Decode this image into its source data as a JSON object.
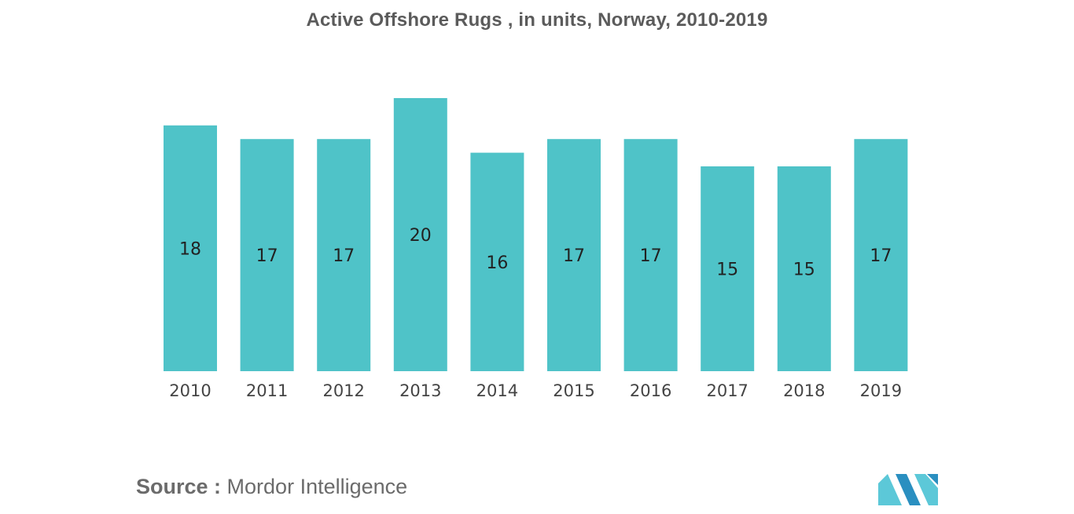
{
  "chart_data": {
    "type": "bar",
    "title": "Active Offshore Rugs , in units, Norway, 2010-2019",
    "categories": [
      "2010",
      "2011",
      "2012",
      "2013",
      "2014",
      "2015",
      "2016",
      "2017",
      "2018",
      "2019"
    ],
    "values": [
      18,
      17,
      17,
      20,
      16,
      17,
      17,
      15,
      15,
      17
    ],
    "ylim": [
      0,
      20
    ],
    "grid": false,
    "legend": "none",
    "bar_color": "#4fc3c8"
  },
  "source": {
    "label": "Source :",
    "text": "Mordor Intelligence"
  },
  "logo": {
    "icon": "mordor-intelligence-logo-icon",
    "color_light": "#5cc8d8",
    "color_dark": "#2a8fc0"
  }
}
